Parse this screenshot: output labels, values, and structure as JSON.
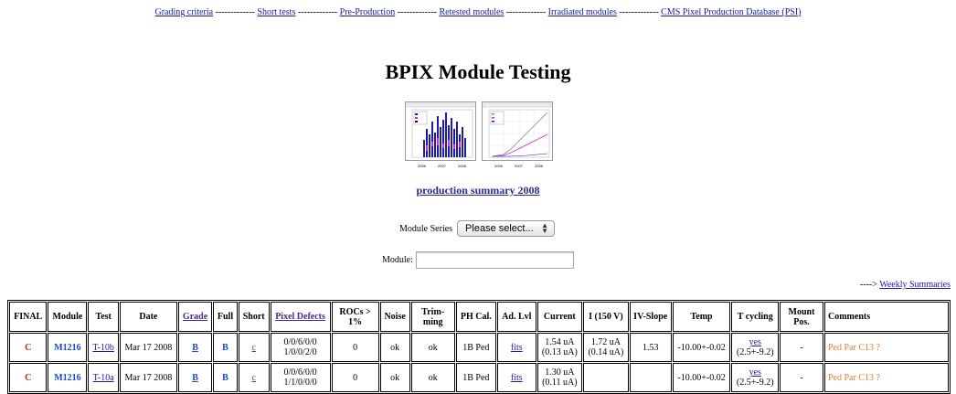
{
  "nav": {
    "items": [
      "Grading criteria",
      "Short tests",
      "Pre-Production",
      "Retested modules",
      "Irradiated modules",
      "CMS Pixel Production Database (PSI)"
    ],
    "separator": "-------------"
  },
  "title": "BPIX Module Testing",
  "thumbnails": {
    "left_label": "production histogram thumbnail",
    "right_label": "cumulative production thumbnail",
    "axis_ticks": [
      "2006",
      "2007",
      "2008"
    ]
  },
  "production_link": "production summary 2008",
  "module_series": {
    "label": "Module Series",
    "selected": "Please select..."
  },
  "module_field": {
    "label": "Module:",
    "value": ""
  },
  "weekly": {
    "prefix": "---->",
    "link": "Weekly Summaries"
  },
  "table": {
    "headers": [
      "FINAL",
      "Module",
      "Test",
      "Date",
      "Grade",
      "Full",
      "Short",
      "Pixel Defects",
      "ROCs > 1%",
      "Noise",
      "Trim-ming",
      "PH Cal.",
      "Ad. Lvl",
      "Current",
      "I (150 V)",
      "IV-Slope",
      "Temp",
      "T cycling",
      "Mount Pos.",
      "Comments"
    ],
    "rows": [
      {
        "final": "C",
        "module": "M1216",
        "test": "T-10b",
        "date": "Mar 17 2008",
        "grade": "B",
        "full": "B",
        "short": "c",
        "pixel_defects_1": "0/0/6/0/0",
        "pixel_defects_2": "1/0/0/2/0",
        "rocs": "0",
        "noise": "ok",
        "trimming": "ok",
        "phcal": "1B Ped",
        "adlvl": "fits",
        "current_1": "1.54 uA",
        "current_2": "(0.13 uA)",
        "i150_1": "1.72 uA",
        "i150_2": "(0.14 uA)",
        "ivslope": "1.53",
        "temp": "-10.00+-0.02",
        "tcycling_1": "yes",
        "tcycling_2": "(2.5+-9.2)",
        "mount": "-",
        "comments": "Ped Par C13 ?"
      },
      {
        "final": "C",
        "module": "M1216",
        "test": "T-10a",
        "date": "Mar 17 2008",
        "grade": "B",
        "full": "B",
        "short": "c",
        "pixel_defects_1": "0/0/6/0/0",
        "pixel_defects_2": "1/1/0/0/0",
        "rocs": "0",
        "noise": "ok",
        "trimming": "ok",
        "phcal": "1B Ped",
        "adlvl": "fits",
        "current_1": "1.30 uA",
        "current_2": "(0.11 uA)",
        "i150_1": "",
        "i150_2": "",
        "ivslope": "",
        "temp": "-10.00+-0.02",
        "tcycling_1": "yes",
        "tcycling_2": "(2.5+-9.2)",
        "mount": "-",
        "comments": "Ped Par C13 ?"
      }
    ]
  },
  "colors": {
    "link": "#1a1aa6",
    "final": "#b02a00",
    "module": "#1f45d6",
    "comment": "#e07c2c"
  }
}
